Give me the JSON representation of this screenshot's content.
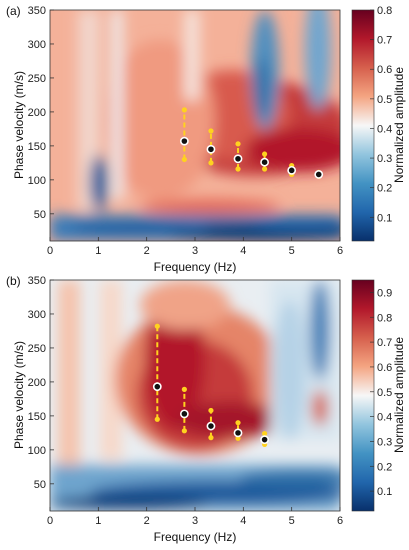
{
  "chart_data": [
    {
      "type": "heatmap",
      "panel_label": "(a)",
      "xlabel": "Frequency (Hz)",
      "ylabel": "Phase velocity (m/s)",
      "colorbar_label": "Normalized amplitude",
      "xlim": [
        0,
        6
      ],
      "ylim": [
        10,
        350
      ],
      "x_ticks": [
        "0",
        "1",
        "2",
        "3",
        "4",
        "5",
        "6"
      ],
      "y_ticks": [
        "50",
        "100",
        "150",
        "200",
        "250",
        "300",
        "350"
      ],
      "clim": [
        0.02,
        0.8
      ],
      "colorbar_ticks": [
        "0.1",
        "0.2",
        "0.3",
        "0.4",
        "0.5",
        "0.6",
        "0.7",
        "0.8"
      ],
      "colormap": [
        "#08306b",
        "#2166ac",
        "#4393c3",
        "#92c5de",
        "#f7f7f7",
        "#f4a582",
        "#d6604d",
        "#b2182b",
        "#67001f"
      ],
      "picked_points": [
        {
          "x": 2.78,
          "y": 157,
          "lower": 130,
          "upper": 203
        },
        {
          "x": 3.33,
          "y": 145,
          "lower": 125,
          "upper": 172
        },
        {
          "x": 3.89,
          "y": 131,
          "lower": 116,
          "upper": 153
        },
        {
          "x": 4.44,
          "y": 126,
          "lower": 116,
          "upper": 138
        },
        {
          "x": 5.0,
          "y": 114,
          "lower": 108,
          "upper": 121
        },
        {
          "x": 5.56,
          "y": 108,
          "lower": 105,
          "upper": 111
        }
      ],
      "marker_colors": {
        "point_fill": "#111111",
        "point_ring": "#ffffff",
        "error_bar": "#ffd21f"
      }
    },
    {
      "type": "heatmap",
      "panel_label": "(b)",
      "xlabel": "Frequency (Hz)",
      "ylabel": "Phase velocity (m/s)",
      "colorbar_label": "Normalized amplitude",
      "xlim": [
        0,
        6
      ],
      "ylim": [
        10,
        350
      ],
      "x_ticks": [
        "0",
        "1",
        "2",
        "3",
        "4",
        "5",
        "6"
      ],
      "y_ticks": [
        "50",
        "100",
        "150",
        "200",
        "250",
        "300",
        "350"
      ],
      "clim": [
        0.02,
        0.95
      ],
      "colorbar_ticks": [
        "0.1",
        "0.2",
        "0.3",
        "0.4",
        "0.5",
        "0.6",
        "0.7",
        "0.8",
        "0.9"
      ],
      "colormap": [
        "#08306b",
        "#2166ac",
        "#4393c3",
        "#92c5de",
        "#f7f7f7",
        "#f4a582",
        "#d6604d",
        "#b2182b",
        "#67001f"
      ],
      "picked_points": [
        {
          "x": 2.22,
          "y": 193,
          "lower": 145,
          "upper": 282
        },
        {
          "x": 2.78,
          "y": 153,
          "lower": 128,
          "upper": 189
        },
        {
          "x": 3.33,
          "y": 135,
          "lower": 118,
          "upper": 158
        },
        {
          "x": 3.89,
          "y": 125,
          "lower": 117,
          "upper": 140
        },
        {
          "x": 4.44,
          "y": 115,
          "lower": 108,
          "upper": 124
        }
      ],
      "marker_colors": {
        "point_fill": "#111111",
        "point_ring": "#ffffff",
        "error_bar": "#ffd21f"
      }
    }
  ]
}
